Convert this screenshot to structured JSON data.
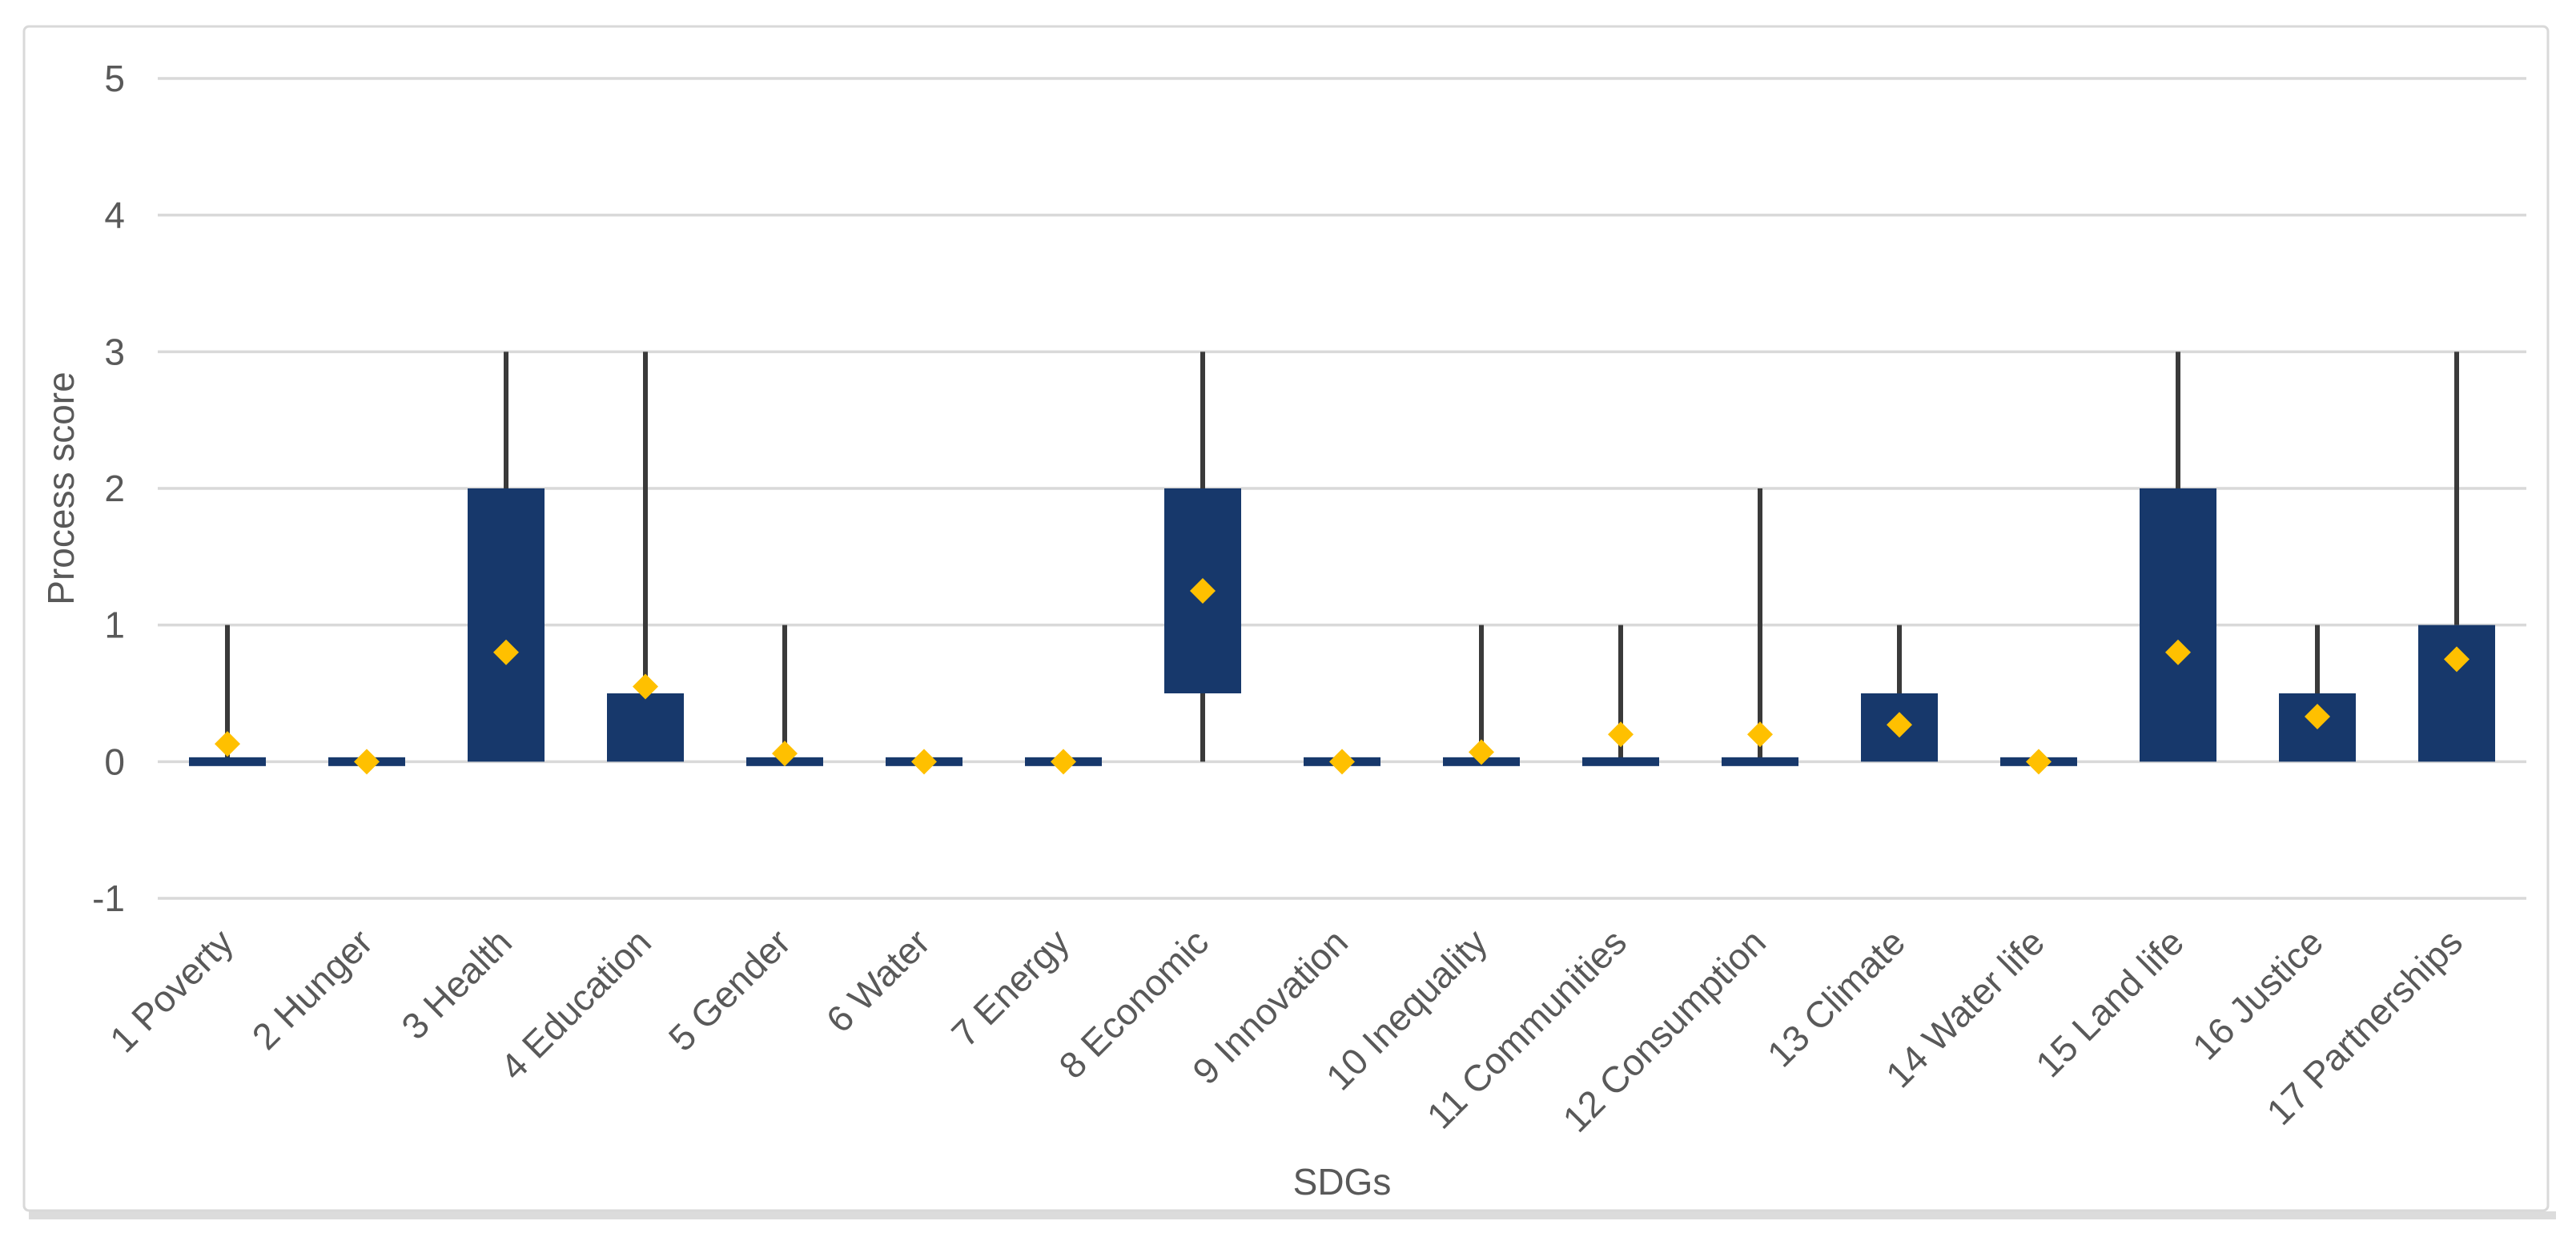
{
  "figure": {
    "background": "#ffffff",
    "border_color": "#d9d9d9"
  },
  "chart_data": {
    "type": "boxplot",
    "title": "",
    "xlabel": "SDGs",
    "ylabel": "Process score",
    "ylim": [
      -1,
      5
    ],
    "yticks": [
      5,
      4,
      3,
      2,
      1,
      0,
      -1
    ],
    "grid": true,
    "legend": false,
    "marker_style": "mean-diamond",
    "colors": {
      "box_fill": "#17386b",
      "whisker": "#3a3a3a",
      "mean_marker": "#ffc000",
      "gridline": "#d9d9d9",
      "axis_text": "#595959",
      "chart_border": "#d9d9d9",
      "bottom_edge": "#dcdcdc"
    },
    "categories": [
      "1 Poverty",
      "2 Hunger",
      "3 Health",
      "4 Education",
      "5 Gender",
      "6 Water",
      "7 Energy",
      "8 Economic",
      "9 Innovation",
      "10 Inequality",
      "11 Communities",
      "12 Consumption",
      "13 Climate",
      "14 Water life",
      "15 Land life",
      "16 Justice",
      "17 Partnerships"
    ],
    "boxes": [
      {
        "category": "1 Poverty",
        "min": 0,
        "q1": 0,
        "q3": 0,
        "max": 1,
        "mean": 0.13
      },
      {
        "category": "2 Hunger",
        "min": 0,
        "q1": 0,
        "q3": 0,
        "max": 0,
        "mean": 0
      },
      {
        "category": "3 Health",
        "min": 0,
        "q1": 0,
        "q3": 2,
        "max": 3,
        "mean": 0.8
      },
      {
        "category": "4 Education",
        "min": 0,
        "q1": 0,
        "q3": 0.5,
        "max": 3,
        "mean": 0.55
      },
      {
        "category": "5 Gender",
        "min": 0,
        "q1": 0,
        "q3": 0,
        "max": 1,
        "mean": 0.06
      },
      {
        "category": "6 Water",
        "min": 0,
        "q1": 0,
        "q3": 0,
        "max": 0,
        "mean": 0
      },
      {
        "category": "7 Energy",
        "min": 0,
        "q1": 0,
        "q3": 0,
        "max": 0,
        "mean": 0
      },
      {
        "category": "8 Economic",
        "min": 0,
        "q1": 0.5,
        "q3": 2,
        "max": 3,
        "mean": 1.25
      },
      {
        "category": "9 Innovation",
        "min": 0,
        "q1": 0,
        "q3": 0,
        "max": 0,
        "mean": 0
      },
      {
        "category": "10 Inequality",
        "min": 0,
        "q1": 0,
        "q3": 0,
        "max": 1,
        "mean": 0.07
      },
      {
        "category": "11 Communities",
        "min": 0,
        "q1": 0,
        "q3": 0,
        "max": 1,
        "mean": 0.2
      },
      {
        "category": "12 Consumption",
        "min": 0,
        "q1": 0,
        "q3": 0,
        "max": 2,
        "mean": 0.2
      },
      {
        "category": "13 Climate",
        "min": 0,
        "q1": 0,
        "q3": 0.5,
        "max": 1,
        "mean": 0.27
      },
      {
        "category": "14 Water life",
        "min": 0,
        "q1": 0,
        "q3": 0,
        "max": 0,
        "mean": 0
      },
      {
        "category": "15 Land life",
        "min": 0,
        "q1": 0,
        "q3": 2,
        "max": 3,
        "mean": 0.8
      },
      {
        "category": "16 Justice",
        "min": 0,
        "q1": 0,
        "q3": 0.5,
        "max": 1,
        "mean": 0.33
      },
      {
        "category": "17 Partnerships",
        "min": 0,
        "q1": 0,
        "q3": 1,
        "max": 3,
        "mean": 0.75
      }
    ]
  }
}
